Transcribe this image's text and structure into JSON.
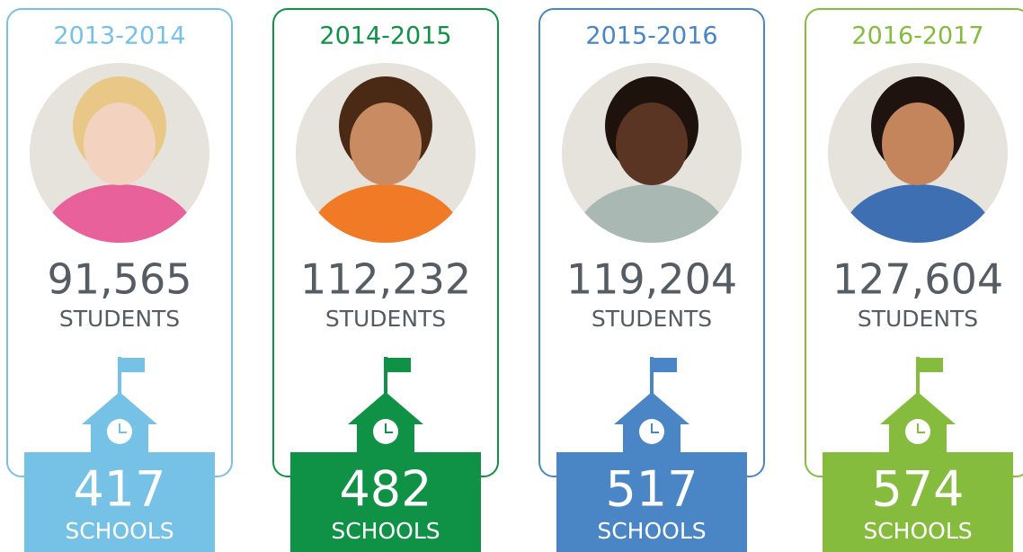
{
  "columns": [
    {
      "year": "2013-2014",
      "students": "91,565",
      "students_label": "STUDENTS",
      "schools": "417",
      "schools_label": "SCHOOLS",
      "color": "#76c1e6"
    },
    {
      "year": "2014-2015",
      "students": "112,232",
      "students_label": "STUDENTS",
      "schools": "482",
      "schools_label": "SCHOOLS",
      "color": "#0f9146"
    },
    {
      "year": "2015-2016",
      "students": "119,204",
      "students_label": "STUDENTS",
      "schools": "517",
      "schools_label": "SCHOOLS",
      "color": "#4a86c5"
    },
    {
      "year": "2016-2017",
      "students": "127,604",
      "students_label": "STUDENTS",
      "schools": "574",
      "schools_label": "SCHOOLS",
      "color": "#86bc3e"
    }
  ]
}
